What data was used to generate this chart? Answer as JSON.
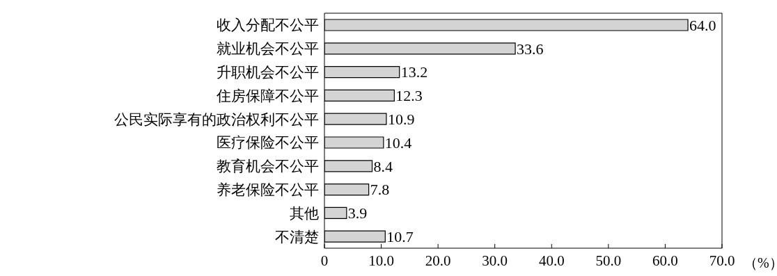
{
  "chart_data": {
    "type": "bar",
    "orientation": "horizontal",
    "categories": [
      "收入分配不公平",
      "就业机会不公平",
      "升职机会不公平",
      "住房保障不公平",
      "公民实际享有的政治权利不公平",
      "医疗保险不公平",
      "教育机会不公平",
      "养老保险不公平",
      "其他",
      "不清楚"
    ],
    "values": [
      64.0,
      33.6,
      13.2,
      12.3,
      10.9,
      10.4,
      8.4,
      7.8,
      3.9,
      10.7
    ],
    "value_labels": [
      "64.0",
      "33.6",
      "13.2",
      "12.3",
      "10.9",
      "10.4",
      "8.4",
      "7.8",
      "3.9",
      "10.7"
    ],
    "color": "#d4d4d4",
    "xlabel": "（%）",
    "xlim": [
      0,
      70
    ],
    "xticks": [
      0,
      {
        "value": 10,
        "label": "10.0"
      },
      {
        "value": 20,
        "label": "20.0"
      },
      {
        "value": 30,
        "label": "30.0"
      },
      {
        "value": 40,
        "label": "40.0"
      },
      {
        "value": 50,
        "label": "50.0"
      },
      {
        "value": 60,
        "label": "60.0"
      },
      {
        "value": 70,
        "label": "70.0"
      }
    ]
  }
}
